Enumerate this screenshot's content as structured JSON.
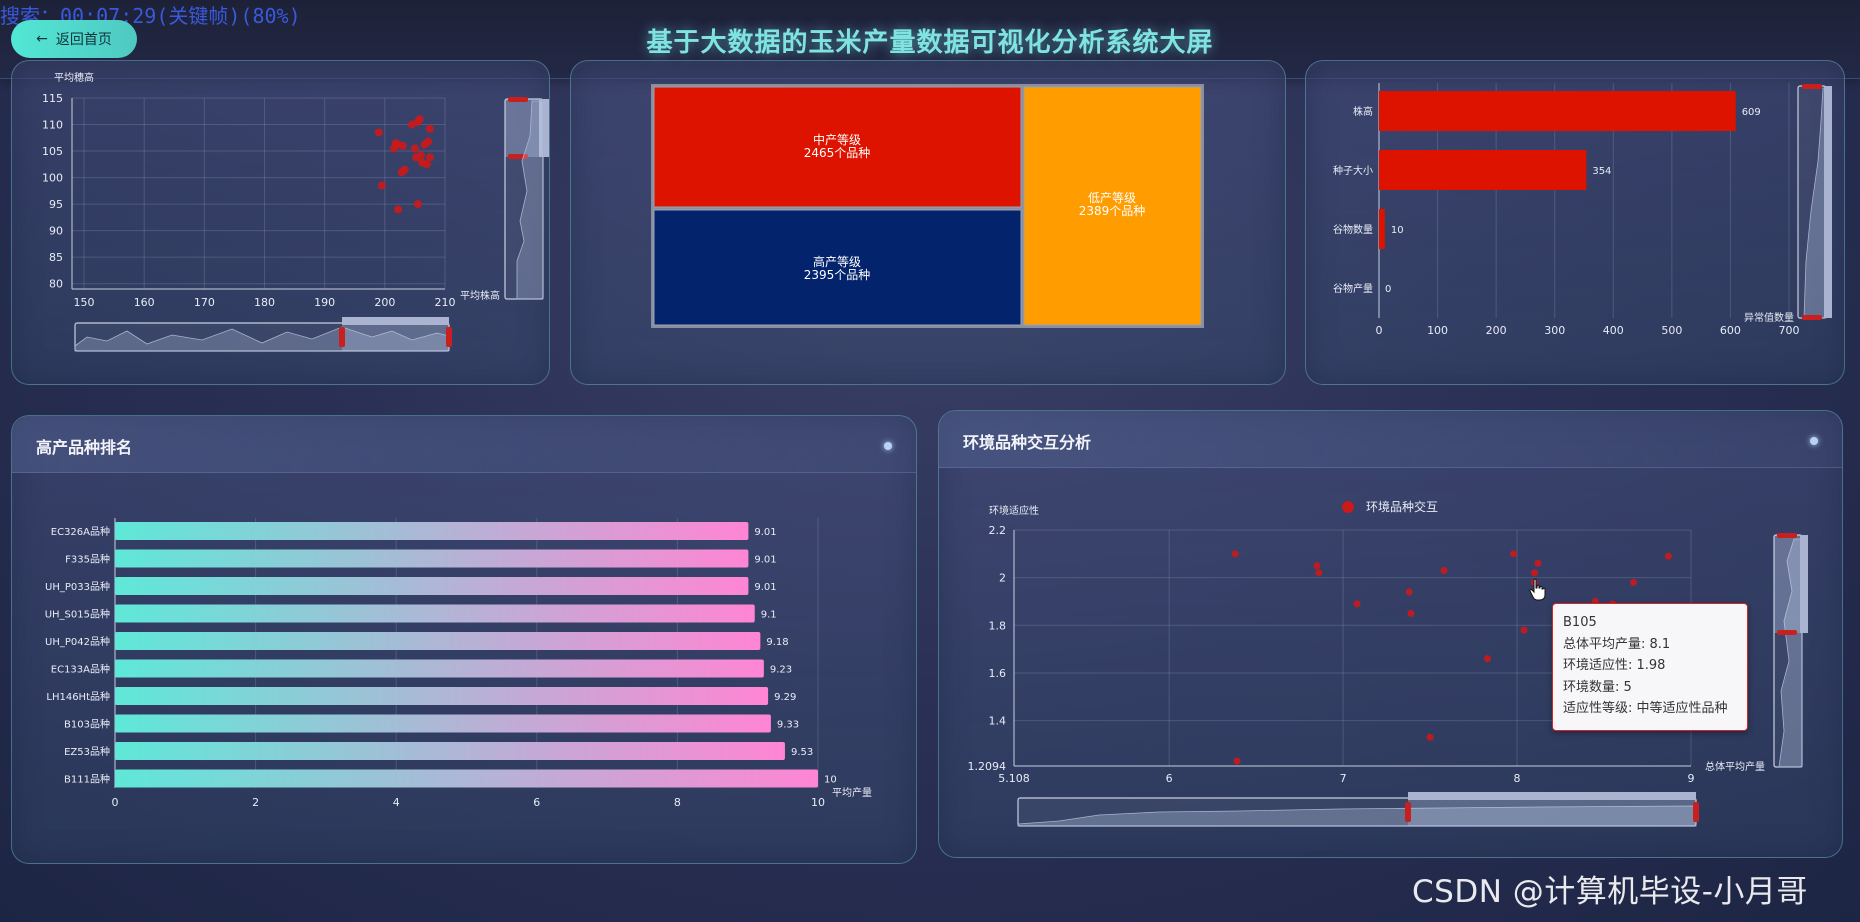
{
  "overlay_text": "搜索：00:07:29(关键帧)(80%)",
  "header": {
    "home_button": "返回首页",
    "title": "基于大数据的玉米产量数据可视化分析系统大屏"
  },
  "scatter_top": {
    "y_axis_label": "平均穗高",
    "x_axis_label": "平均株高",
    "chart_data": {
      "type": "scatter",
      "x_ticks": [
        "150",
        "160",
        "170",
        "180",
        "190",
        "200",
        "210"
      ],
      "y_ticks": [
        "80",
        "85",
        "90",
        "95",
        "100",
        "105",
        "110",
        "115"
      ],
      "xlim": [
        148,
        210
      ],
      "ylim": [
        79,
        115
      ],
      "points": [
        [
          199,
          108.5
        ],
        [
          199.5,
          98.5
        ],
        [
          201.5,
          105.5
        ],
        [
          201.8,
          106.5
        ],
        [
          202.2,
          106.2
        ],
        [
          202.8,
          101
        ],
        [
          202.2,
          94
        ],
        [
          203.3,
          101.5
        ],
        [
          204.5,
          110
        ],
        [
          205,
          105.5
        ],
        [
          205.5,
          110.5
        ],
        [
          205.8,
          111
        ],
        [
          205.2,
          103.8
        ],
        [
          206,
          104.2
        ],
        [
          206.2,
          102.8
        ],
        [
          205.5,
          95
        ],
        [
          206.6,
          106.2
        ],
        [
          207.2,
          106.8
        ],
        [
          207.5,
          109.2
        ],
        [
          207.5,
          103.8
        ],
        [
          207,
          102.5
        ],
        [
          203,
          106
        ]
      ]
    }
  },
  "treemap": {
    "chart_data": {
      "type": "treemap",
      "items": [
        {
          "name": "中产等级",
          "count_label": "2465个品种",
          "value": 2465,
          "color": "#dd1300"
        },
        {
          "name": "高产等级",
          "count_label": "2395个品种",
          "value": 2395,
          "color": "#03236c"
        },
        {
          "name": "低产等级",
          "count_label": "2389个品种",
          "value": 2389,
          "color": "#ff9c00"
        }
      ]
    }
  },
  "anomaly_bar": {
    "x_axis_label": "异常值数量",
    "chart_data": {
      "type": "bar",
      "categories": [
        "株高",
        "种子大小",
        "谷物数量",
        "谷物产量"
      ],
      "values": [
        609,
        354,
        10,
        0
      ],
      "x_ticks": [
        "0",
        "100",
        "200",
        "300",
        "400",
        "500",
        "600",
        "700"
      ],
      "xlim": [
        0,
        700
      ]
    }
  },
  "ranking": {
    "title": "高产品种排名",
    "x_axis_label": "平均产量",
    "chart_data": {
      "type": "bar",
      "categories": [
        "EC326A品种",
        "F335品种",
        "UH_P033品种",
        "UH_S015品种",
        "UH_P042品种",
        "EC133A品种",
        "LH146Ht品种",
        "B103品种",
        "EZ53品种",
        "B111品种"
      ],
      "values": [
        9.01,
        9.01,
        9.01,
        9.1,
        9.18,
        9.23,
        9.29,
        9.33,
        9.53,
        10
      ],
      "value_labels": [
        "9.01",
        "9.01",
        "9.01",
        "9.1",
        "9.18",
        "9.23",
        "9.29",
        "9.33",
        "9.53",
        "10"
      ],
      "x_ticks": [
        "0",
        "2",
        "4",
        "6",
        "8",
        "10"
      ],
      "xlim": [
        0,
        10
      ]
    }
  },
  "env_scatter": {
    "title": "环境品种交互分析",
    "legend": "环境品种交互",
    "y_axis_label": "环境适应性",
    "x_axis_label": "总体平均产量",
    "chart_data": {
      "type": "scatter",
      "x_ticks": [
        "5.108",
        "6",
        "7",
        "8",
        "9"
      ],
      "y_ticks": [
        "1.2094",
        "1.4",
        "1.6",
        "1.8",
        "2",
        "2.2"
      ],
      "xlim": [
        5.108,
        9
      ],
      "ylim": [
        1.2094,
        2.2
      ],
      "points": [
        [
          6.38,
          2.1
        ],
        [
          6.39,
          1.23
        ],
        [
          6.85,
          2.05
        ],
        [
          6.86,
          2.02
        ],
        [
          7.08,
          1.89
        ],
        [
          7.38,
          1.94
        ],
        [
          7.39,
          1.85
        ],
        [
          7.58,
          2.03
        ],
        [
          7.5,
          1.33
        ],
        [
          7.83,
          1.66
        ],
        [
          7.98,
          2.1
        ],
        [
          8.04,
          1.78
        ],
        [
          8.1,
          2.02
        ],
        [
          8.12,
          2.06
        ],
        [
          8.1,
          1.98
        ],
        [
          8.45,
          1.9
        ],
        [
          8.67,
          1.98
        ],
        [
          8.87,
          2.09
        ],
        [
          8.55,
          1.89
        ]
      ]
    },
    "tooltip": {
      "name": "B105",
      "line1": "总体平均产量: 8.1",
      "line2": "环境适应性: 1.98",
      "line3": "环境数量: 5",
      "line4": "适应性等级: 中等适应性品种"
    }
  },
  "watermark": "CSDN @计算机毕设-小月哥",
  "colors": {
    "accent": "#52e7d5",
    "point": "#cc1a1a",
    "bar_red": "#dd1300",
    "grad_start": "#5ee8d8",
    "grad_end": "#ff85d4"
  }
}
